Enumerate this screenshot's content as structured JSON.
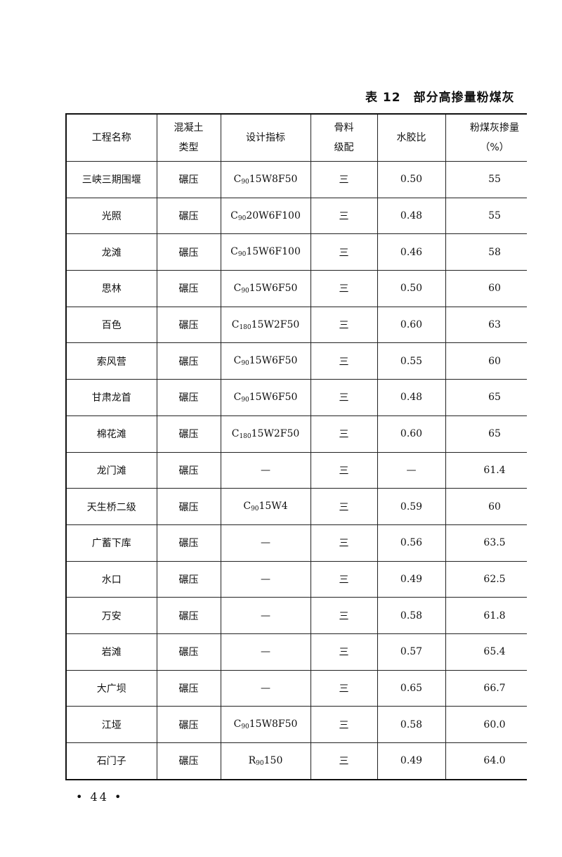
{
  "table_title": {
    "number": "表 12",
    "text": "部分高掺量粉煤灰"
  },
  "headers": [
    "工程名称",
    "混凝土\n类型",
    "设计指标",
    "骨料\n级配",
    "水胶比",
    "粉煤灰掺量\n（%）"
  ],
  "rows": [
    {
      "name": "三峡三期围堰",
      "type": "碾压",
      "design": {
        "base": "C",
        "sub": "90",
        "rest": "15W8F50"
      },
      "grading": "三",
      "wb": "0.50",
      "fly_ash": "55"
    },
    {
      "name": "光照",
      "type": "碾压",
      "design": {
        "base": "C",
        "sub": "90",
        "rest": "20W6F100"
      },
      "grading": "三",
      "wb": "0.48",
      "fly_ash": "55"
    },
    {
      "name": "龙滩",
      "type": "碾压",
      "design": {
        "base": "C",
        "sub": "90",
        "rest": "15W6F100"
      },
      "grading": "三",
      "wb": "0.46",
      "fly_ash": "58"
    },
    {
      "name": "思林",
      "type": "碾压",
      "design": {
        "base": "C",
        "sub": "90",
        "rest": "15W6F50"
      },
      "grading": "三",
      "wb": "0.50",
      "fly_ash": "60"
    },
    {
      "name": "百色",
      "type": "碾压",
      "design": {
        "base": "C",
        "sub": "180",
        "rest": "15W2F50"
      },
      "grading": "三",
      "wb": "0.60",
      "fly_ash": "63"
    },
    {
      "name": "索风营",
      "type": "碾压",
      "design": {
        "base": "C",
        "sub": "90",
        "rest": "15W6F50"
      },
      "grading": "三",
      "wb": "0.55",
      "fly_ash": "60"
    },
    {
      "name": "甘肃龙首",
      "type": "碾压",
      "design": {
        "base": "C",
        "sub": "90",
        "rest": "15W6F50"
      },
      "grading": "三",
      "wb": "0.48",
      "fly_ash": "65"
    },
    {
      "name": "棉花滩",
      "type": "碾压",
      "design": {
        "base": "C",
        "sub": "180",
        "rest": "15W2F50"
      },
      "grading": "三",
      "wb": "0.60",
      "fly_ash": "65"
    },
    {
      "name": "龙门滩",
      "type": "碾压",
      "design": {
        "text": "—"
      },
      "grading": "三",
      "wb": "—",
      "fly_ash": "61.4"
    },
    {
      "name": "天生桥二级",
      "type": "碾压",
      "design": {
        "base": "C",
        "sub": "90",
        "rest": "15W4"
      },
      "grading": "三",
      "wb": "0.59",
      "fly_ash": "60"
    },
    {
      "name": "广蓄下库",
      "type": "碾压",
      "design": {
        "text": "—"
      },
      "grading": "三",
      "wb": "0.56",
      "fly_ash": "63.5"
    },
    {
      "name": "水口",
      "type": "碾压",
      "design": {
        "text": "—"
      },
      "grading": "三",
      "wb": "0.49",
      "fly_ash": "62.5"
    },
    {
      "name": "万安",
      "type": "碾压",
      "design": {
        "text": "—"
      },
      "grading": "三",
      "wb": "0.58",
      "fly_ash": "61.8"
    },
    {
      "name": "岩滩",
      "type": "碾压",
      "design": {
        "text": "—"
      },
      "grading": "三",
      "wb": "0.57",
      "fly_ash": "65.4"
    },
    {
      "name": "大广坝",
      "type": "碾压",
      "design": {
        "text": "—"
      },
      "grading": "三",
      "wb": "0.65",
      "fly_ash": "66.7"
    },
    {
      "name": "江垭",
      "type": "碾压",
      "design": {
        "base": "C",
        "sub": "90",
        "rest": "15W8F50"
      },
      "grading": "三",
      "wb": "0.58",
      "fly_ash": "60.0"
    },
    {
      "name": "石门子",
      "type": "碾压",
      "design": {
        "base": "R",
        "sub": "90",
        "rest": "150"
      },
      "grading": "三",
      "wb": "0.49",
      "fly_ash": "64.0"
    }
  ],
  "page_number": "• 44 •"
}
